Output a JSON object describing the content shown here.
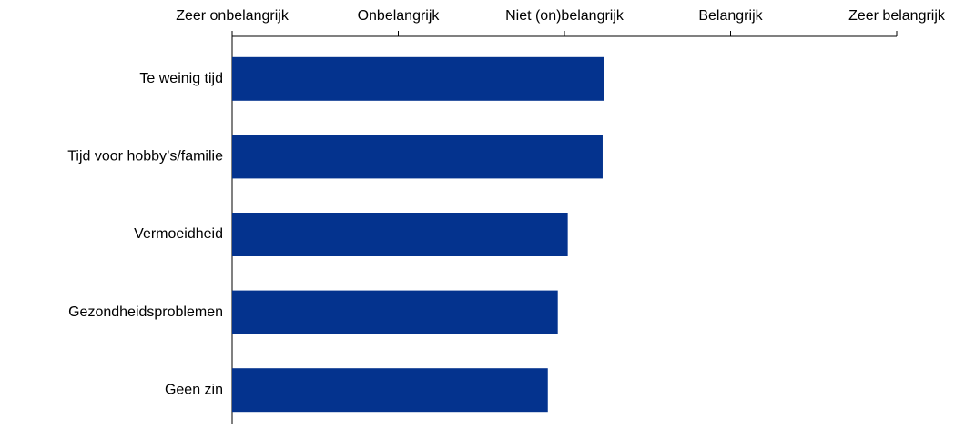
{
  "chart_data": {
    "type": "bar",
    "orientation": "horizontal",
    "categories": [
      "Te weinig tijd",
      "Tijd voor hobby’s/familie",
      "Vermoeidheid",
      "Gezondheidsproblemen",
      "Geen zin"
    ],
    "values": [
      3.24,
      3.23,
      3.02,
      2.96,
      2.9
    ],
    "color": "#04338e",
    "xlim": [
      1,
      5
    ],
    "xticks": [
      {
        "value": 1,
        "label": "Zeer onbelangrijk"
      },
      {
        "value": 2,
        "label": "Onbelangrijk"
      },
      {
        "value": 3,
        "label": "Niet (on)belangrijk"
      },
      {
        "value": 4,
        "label": "Belangrijk"
      },
      {
        "value": 5,
        "label": "Zeer belangrijk"
      }
    ]
  }
}
